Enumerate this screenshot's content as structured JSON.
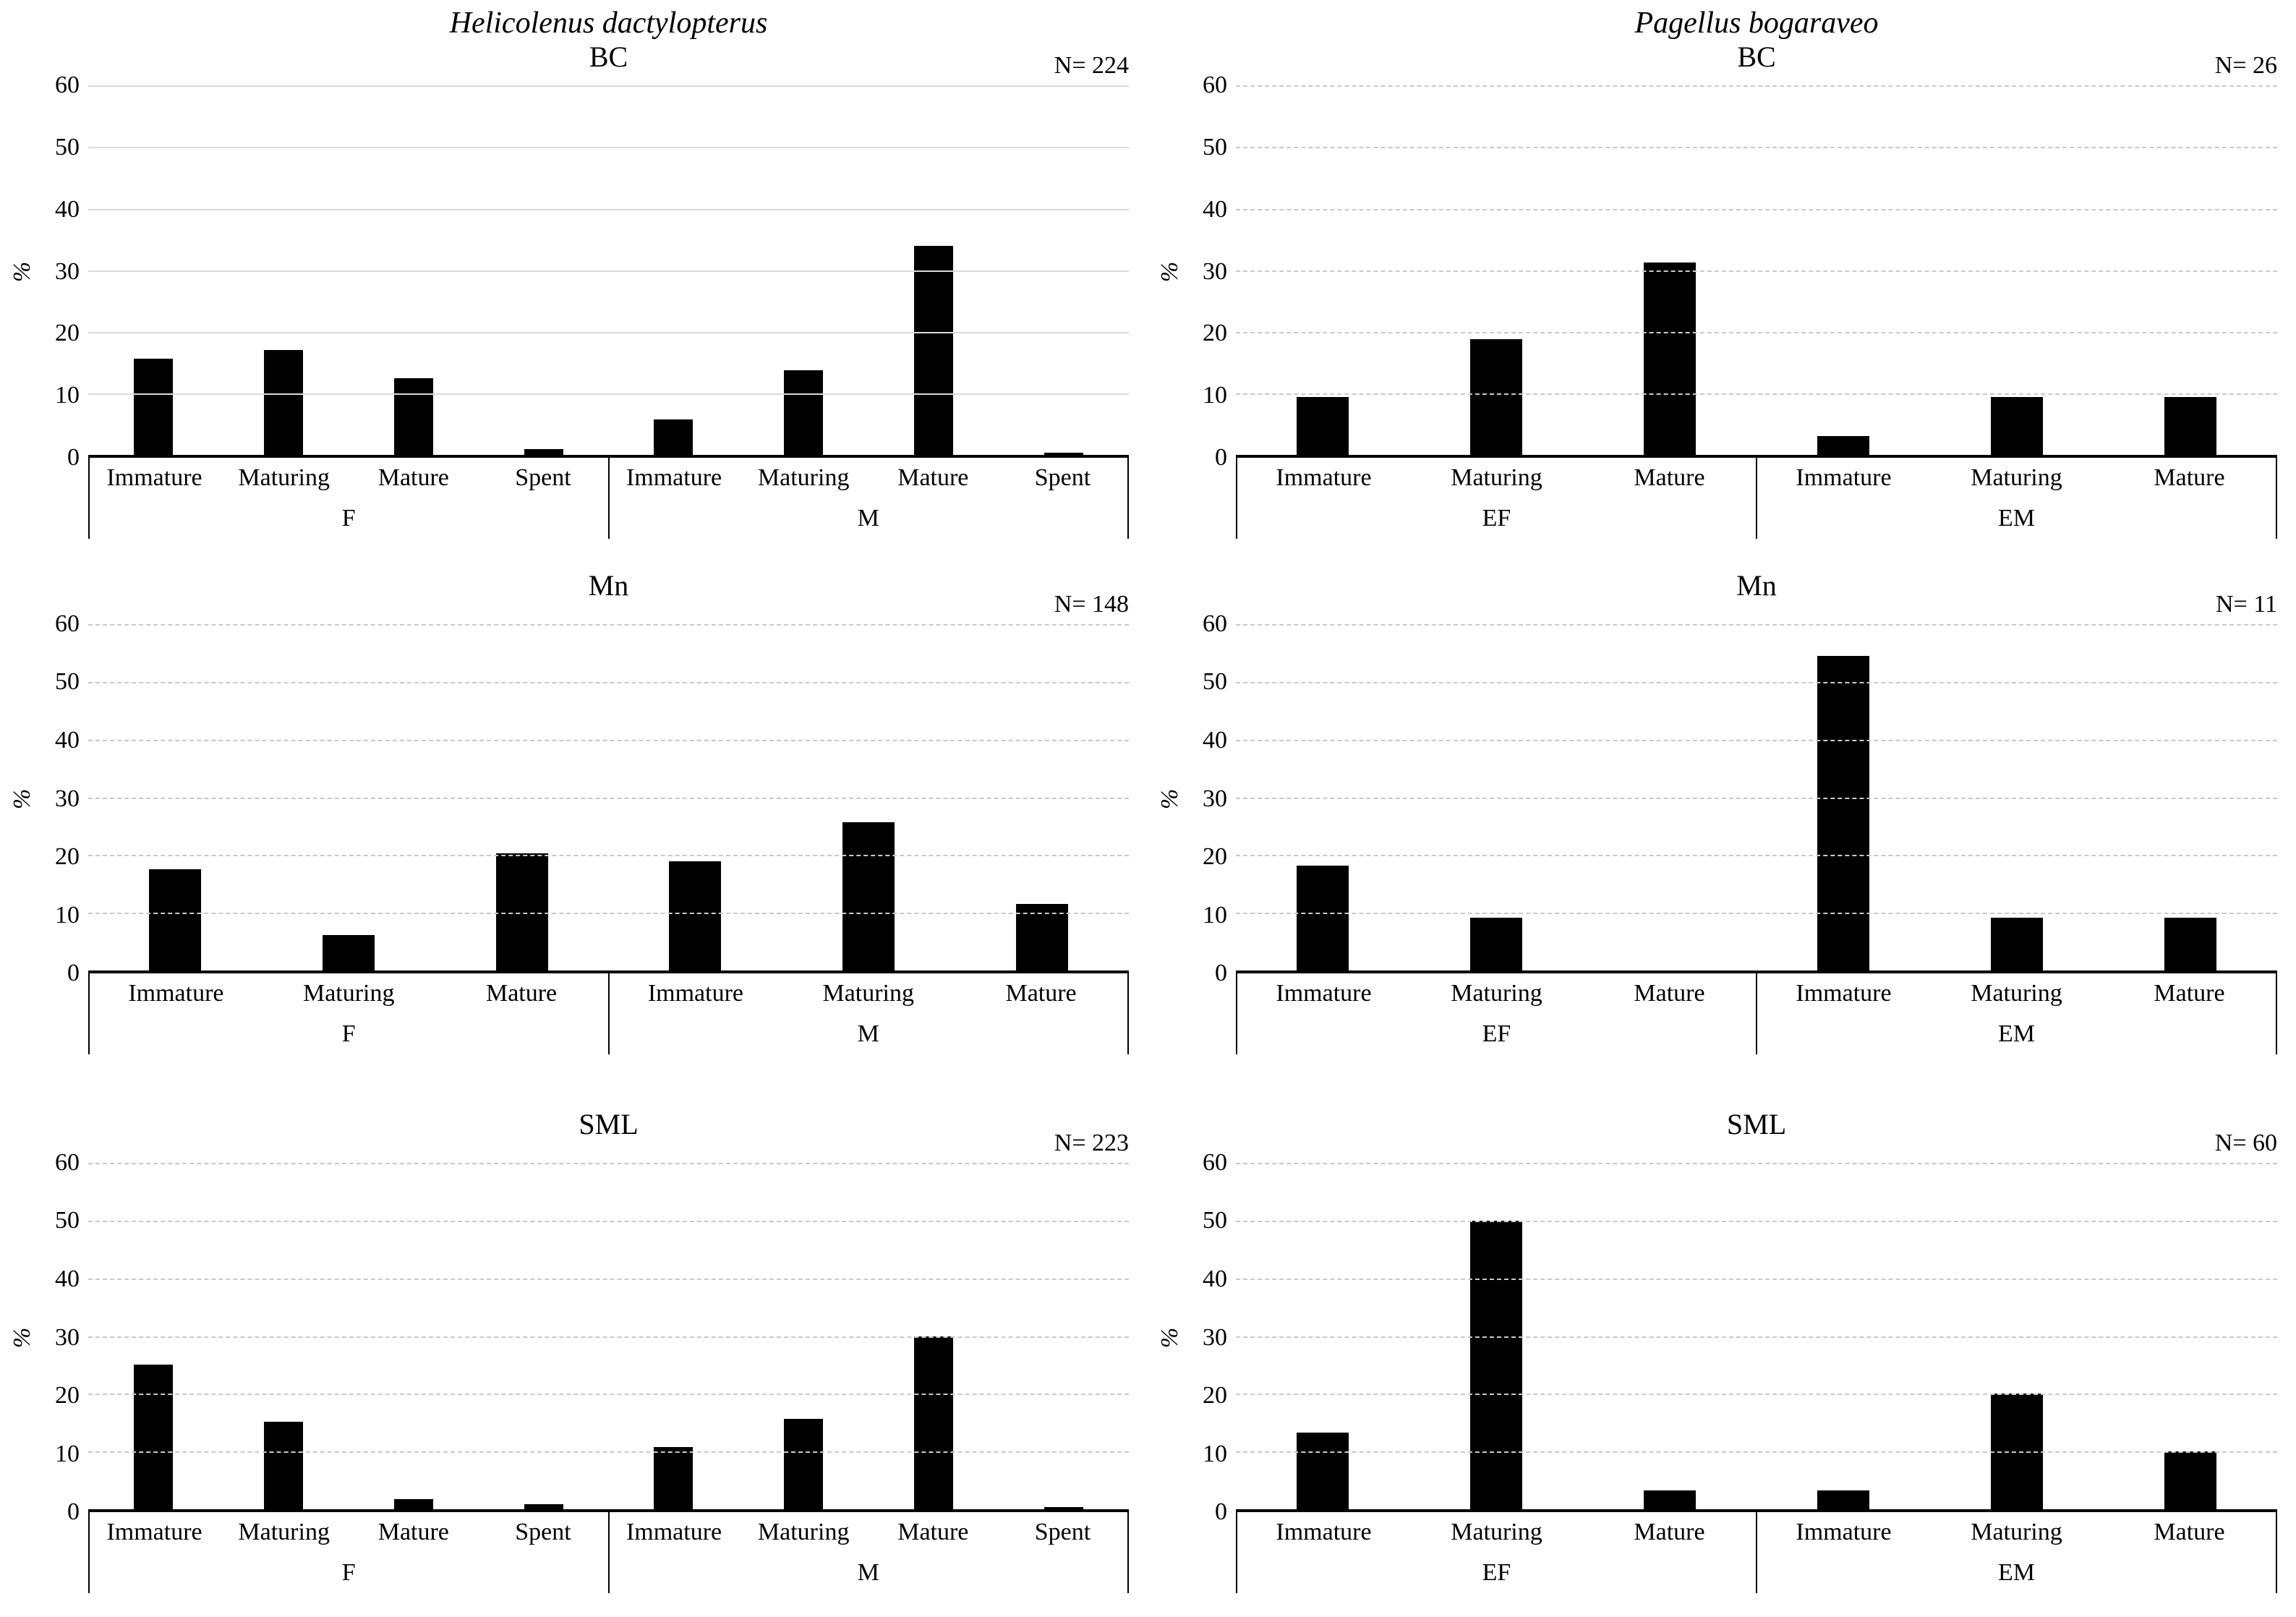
{
  "figure": {
    "left_column_species": "Helicolenus dactylopterus",
    "right_column_species": "Pagellus bogaraveo",
    "ylabel": "%",
    "colors": {
      "bar": "#000000",
      "gridline_solid": "#d9d9d9",
      "gridline_dashed": "#c9c9c9",
      "axis": "#000000"
    }
  },
  "chart_data": [
    {
      "type": "bar",
      "species_title": "Helicolenus dactylopterus",
      "title": "BC",
      "n_label": "N= 224",
      "ylabel": "%",
      "ylim": [
        0,
        60
      ],
      "ytick_step": 10,
      "gridline_style": "solid",
      "legend": "none",
      "groups": [
        {
          "label": "F",
          "categories": [
            "Immature",
            "Maturing",
            "Mature",
            "Spent"
          ],
          "values": [
            15.6,
            17.0,
            12.5,
            0.9
          ]
        },
        {
          "label": "M",
          "categories": [
            "Immature",
            "Maturing",
            "Mature",
            "Spent"
          ],
          "values": [
            5.8,
            13.8,
            33.9,
            0.4
          ]
        }
      ]
    },
    {
      "type": "bar",
      "species_title": "Pagellus bogaraveo",
      "title": "BC",
      "n_label": "N= 26",
      "ylabel": "%",
      "ylim": [
        0,
        60
      ],
      "ytick_step": 10,
      "gridline_style": "dashed",
      "legend": "none",
      "groups": [
        {
          "label": "EF",
          "categories": [
            "Immature",
            "Maturing",
            "Mature"
          ],
          "values": [
            9.4,
            18.8,
            31.3
          ]
        },
        {
          "label": "EM",
          "categories": [
            "Immature",
            "Maturing",
            "Mature"
          ],
          "values": [
            3.1,
            9.4,
            9.4
          ]
        }
      ]
    },
    {
      "type": "bar",
      "species_title": null,
      "title": "Mn",
      "n_label": "N= 148",
      "ylabel": "%",
      "ylim": [
        0,
        60
      ],
      "ytick_step": 10,
      "gridline_style": "dashed",
      "legend": "none",
      "groups": [
        {
          "label": "F",
          "categories": [
            "Immature",
            "Maturing",
            "Mature"
          ],
          "values": [
            17.6,
            6.1,
            20.3
          ]
        },
        {
          "label": "M",
          "categories": [
            "Immature",
            "Maturing",
            "Mature"
          ],
          "values": [
            18.9,
            25.7,
            11.5
          ]
        }
      ]
    },
    {
      "type": "bar",
      "species_title": null,
      "title": "Mn",
      "n_label": "N= 11",
      "ylabel": "%",
      "ylim": [
        0,
        60
      ],
      "ytick_step": 10,
      "gridline_style": "dashed",
      "legend": "none",
      "groups": [
        {
          "label": "EF",
          "categories": [
            "Immature",
            "Maturing",
            "Mature"
          ],
          "values": [
            18.2,
            9.1,
            0
          ]
        },
        {
          "label": "EM",
          "categories": [
            "Immature",
            "Maturing",
            "Mature"
          ],
          "values": [
            54.5,
            9.1,
            9.1
          ]
        }
      ]
    },
    {
      "type": "bar",
      "species_title": null,
      "title": "SML",
      "n_label": "N= 223",
      "ylabel": "%",
      "ylim": [
        0,
        60
      ],
      "ytick_step": 10,
      "gridline_style": "dashed",
      "legend": "none",
      "groups": [
        {
          "label": "F",
          "categories": [
            "Immature",
            "Maturing",
            "Mature",
            "Spent"
          ],
          "values": [
            25.1,
            15.2,
            1.8,
            0.9
          ]
        },
        {
          "label": "M",
          "categories": [
            "Immature",
            "Maturing",
            "Mature",
            "Spent"
          ],
          "values": [
            10.8,
            15.7,
            30.0,
            0.4
          ]
        }
      ]
    },
    {
      "type": "bar",
      "species_title": null,
      "title": "SML",
      "n_label": "N= 60",
      "ylabel": "%",
      "ylim": [
        0,
        60
      ],
      "ytick_step": 10,
      "gridline_style": "dashed",
      "legend": "none",
      "groups": [
        {
          "label": "EF",
          "categories": [
            "Immature",
            "Maturing",
            "Mature"
          ],
          "values": [
            13.3,
            50.0,
            3.3
          ]
        },
        {
          "label": "EM",
          "categories": [
            "Immature",
            "Maturing",
            "Mature"
          ],
          "values": [
            3.3,
            20.0,
            10.0
          ]
        }
      ]
    }
  ]
}
